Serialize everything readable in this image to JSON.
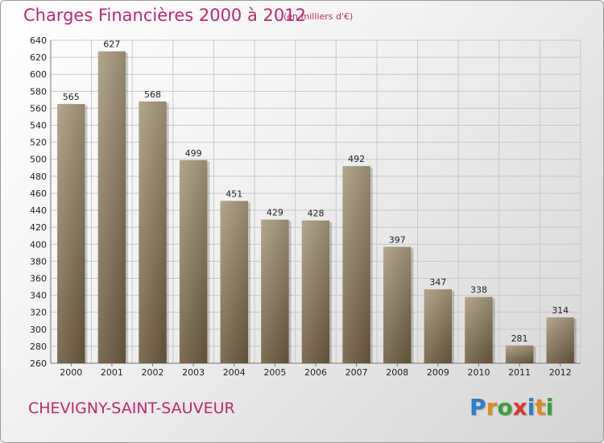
{
  "title": "Charges Financières 2000 à 2012",
  "subtitle": "(en milliers d'€)",
  "commune": "CHEVIGNY-SAINT-SAUVEUR",
  "logo": {
    "letters": [
      {
        "char": "P",
        "color": "#2c7fc9"
      },
      {
        "char": "r",
        "color": "#e08a1e"
      },
      {
        "char": "o",
        "color": "#3aa13a"
      },
      {
        "char": "x",
        "color": "#d83a2e"
      },
      {
        "char": "i",
        "color": "#2c7fc9"
      },
      {
        "char": "t",
        "color": "#e08a1e"
      },
      {
        "char": "i",
        "color": "#3aa13a"
      }
    ]
  },
  "colors": {
    "accent": "#c0266e",
    "bar_light": "#a89a7c",
    "bar_dark": "#6b5a3d",
    "grid": "#c8c8c8"
  },
  "chart_data": {
    "type": "bar",
    "title": "Charges Financières 2000 à 2012",
    "subtitle": "(en milliers d'€)",
    "categories": [
      "2000",
      "2001",
      "2002",
      "2003",
      "2004",
      "2005",
      "2006",
      "2007",
      "2008",
      "2009",
      "2010",
      "2011",
      "2012"
    ],
    "values": [
      565,
      627,
      568,
      499,
      451,
      429,
      428,
      492,
      397,
      347,
      338,
      281,
      314
    ],
    "ylim": [
      260,
      640
    ],
    "ytick_step": 20,
    "grid": true,
    "xlabel": "",
    "ylabel": ""
  }
}
